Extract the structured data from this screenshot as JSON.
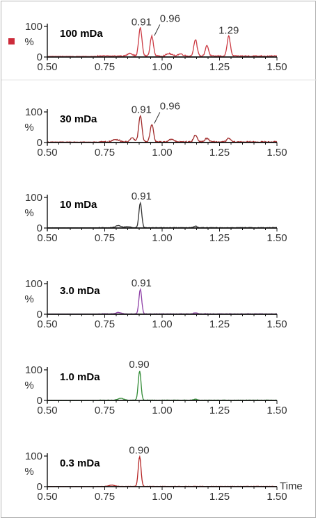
{
  "selector_color": "#cc2b3a",
  "chart_data": [
    {
      "type": "line",
      "title": "100 mDa",
      "color": "#cc3b44",
      "xlim": [
        0.5,
        1.5
      ],
      "ylim": [
        0,
        100
      ],
      "xticks": [
        "0.50",
        "0.75",
        "1.00",
        "1.25",
        "1.50"
      ],
      "yticks": [
        "100",
        "0"
      ],
      "ylabel": "%",
      "xlabel": "",
      "baseline": 3,
      "noise": 4,
      "peaks": [
        {
          "x": 0.905,
          "y": 92,
          "w": 0.007
        },
        {
          "x": 0.955,
          "y": 65,
          "w": 0.007
        },
        {
          "x": 0.86,
          "y": 10,
          "w": 0.01
        },
        {
          "x": 1.145,
          "y": 55,
          "w": 0.007
        },
        {
          "x": 1.195,
          "y": 35,
          "w": 0.007
        },
        {
          "x": 1.29,
          "y": 65,
          "w": 0.007
        },
        {
          "x": 1.03,
          "y": 8,
          "w": 0.012
        },
        {
          "x": 1.08,
          "y": 7,
          "w": 0.012
        }
      ],
      "peak_labels": [
        {
          "x": 0.91,
          "y": 92,
          "text": "0.91"
        },
        {
          "x": 0.96,
          "y": 65,
          "text": "0.96"
        },
        {
          "x": 1.29,
          "y": 65,
          "text": "1.29"
        }
      ]
    },
    {
      "type": "line",
      "title": "30 mDa",
      "color": "#a02a2a",
      "xlim": [
        0.5,
        1.5
      ],
      "ylim": [
        0,
        100
      ],
      "xticks": [
        "0.50",
        "0.75",
        "1.00",
        "1.25",
        "1.50"
      ],
      "yticks": [
        "100",
        "0"
      ],
      "ylabel": "%",
      "xlabel": "",
      "baseline": 2,
      "noise": 4,
      "peaks": [
        {
          "x": 0.905,
          "y": 85,
          "w": 0.007
        },
        {
          "x": 0.955,
          "y": 58,
          "w": 0.007
        },
        {
          "x": 0.87,
          "y": 12,
          "w": 0.01
        },
        {
          "x": 0.8,
          "y": 8,
          "w": 0.015
        },
        {
          "x": 1.145,
          "y": 22,
          "w": 0.008
        },
        {
          "x": 1.195,
          "y": 12,
          "w": 0.008
        },
        {
          "x": 1.29,
          "y": 12,
          "w": 0.008
        },
        {
          "x": 1.04,
          "y": 8,
          "w": 0.012
        }
      ],
      "peak_labels": [
        {
          "x": 0.91,
          "y": 85,
          "text": "0.91"
        },
        {
          "x": 0.96,
          "y": 58,
          "text": "0.96"
        }
      ]
    },
    {
      "type": "line",
      "title": "10 mDa",
      "color": "#333333",
      "xlim": [
        0.5,
        1.5
      ],
      "ylim": [
        0,
        100
      ],
      "xticks": [
        "0.50",
        "0.75",
        "1.00",
        "1.25",
        "1.50"
      ],
      "yticks": [
        "100",
        "0"
      ],
      "ylabel": "%",
      "xlabel": "",
      "baseline": 1,
      "noise": 2,
      "peaks": [
        {
          "x": 0.905,
          "y": 82,
          "w": 0.006
        },
        {
          "x": 0.81,
          "y": 7,
          "w": 0.012
        },
        {
          "x": 0.85,
          "y": 4,
          "w": 0.01
        },
        {
          "x": 1.145,
          "y": 5,
          "w": 0.008
        }
      ],
      "peak_labels": [
        {
          "x": 0.91,
          "y": 82,
          "text": "0.91"
        }
      ]
    },
    {
      "type": "line",
      "title": "3.0 mDa",
      "color": "#8e3fa6",
      "xlim": [
        0.5,
        1.5
      ],
      "ylim": [
        0,
        100
      ],
      "xticks": [
        "0.50",
        "0.75",
        "1.00",
        "1.25",
        "1.50"
      ],
      "yticks": [
        "100",
        "0"
      ],
      "ylabel": "%",
      "xlabel": "",
      "baseline": 1,
      "noise": 1.5,
      "peaks": [
        {
          "x": 0.905,
          "y": 80,
          "w": 0.006
        },
        {
          "x": 0.81,
          "y": 5,
          "w": 0.012
        },
        {
          "x": 1.145,
          "y": 4,
          "w": 0.008
        }
      ],
      "peak_labels": [
        {
          "x": 0.91,
          "y": 80,
          "text": "0.91"
        }
      ]
    },
    {
      "type": "line",
      "title": "1.0 mDa",
      "color": "#2f8a33",
      "xlim": [
        0.5,
        1.5
      ],
      "ylim": [
        0,
        100
      ],
      "xticks": [
        "0.50",
        "0.75",
        "1.00",
        "1.25",
        "1.50"
      ],
      "yticks": [
        "100",
        "0"
      ],
      "ylabel": "%",
      "xlabel": "",
      "baseline": 1,
      "noise": 1,
      "peaks": [
        {
          "x": 0.902,
          "y": 95,
          "w": 0.006
        },
        {
          "x": 0.82,
          "y": 6,
          "w": 0.012
        },
        {
          "x": 1.145,
          "y": 3,
          "w": 0.008
        }
      ],
      "peak_labels": [
        {
          "x": 0.9,
          "y": 95,
          "text": "0.90"
        }
      ]
    },
    {
      "type": "line",
      "title": "0.3 mDa",
      "color": "#b52323",
      "xlim": [
        0.5,
        1.5
      ],
      "ylim": [
        0,
        100
      ],
      "xticks": [
        "0.50",
        "0.75",
        "1.00",
        "1.25",
        "1.50"
      ],
      "yticks": [
        "100",
        "0"
      ],
      "ylabel": "%",
      "xlabel": "Time",
      "baseline": 1,
      "noise": 0.8,
      "peaks": [
        {
          "x": 0.902,
          "y": 97,
          "w": 0.006
        },
        {
          "x": 0.78,
          "y": 4,
          "w": 0.012
        }
      ],
      "peak_labels": [
        {
          "x": 0.9,
          "y": 97,
          "text": "0.90"
        }
      ]
    }
  ]
}
